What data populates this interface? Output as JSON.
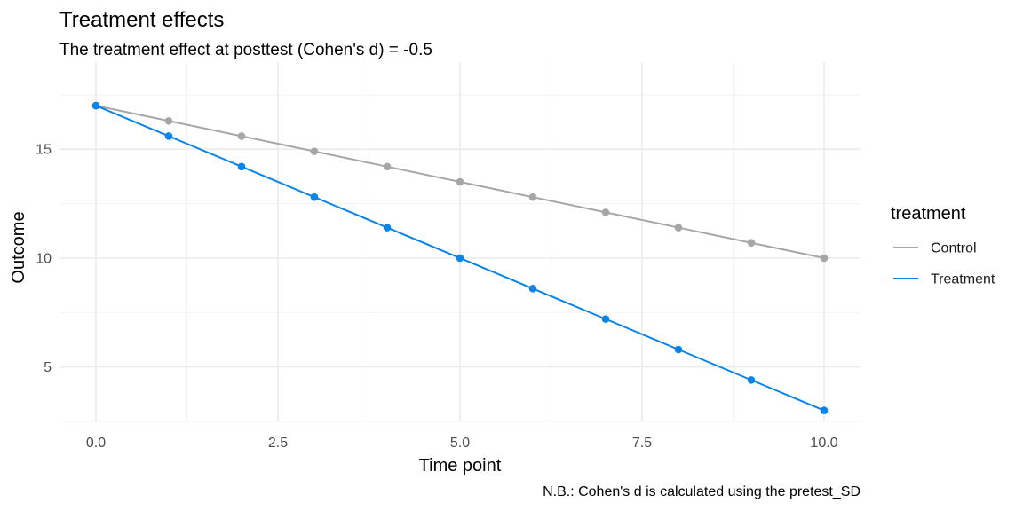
{
  "chart_data": {
    "type": "line",
    "title": "Treatment effects",
    "subtitle": "The treatment effect at posttest (Cohen's d) = -0.5",
    "xlabel": "Time point",
    "ylabel": "Outcome",
    "caption": "N.B.: Cohen's d is calculated using the pretest_SD",
    "x": [
      0,
      1,
      2,
      3,
      4,
      5,
      6,
      7,
      8,
      9,
      10
    ],
    "xlim": [
      -0.5,
      10.5
    ],
    "ylim": [
      2.5,
      19.0
    ],
    "x_ticks": [
      0,
      2.5,
      5,
      7.5,
      10
    ],
    "x_tick_labels": [
      "0.0",
      "2.5",
      "5.0",
      "7.5",
      "10.0"
    ],
    "y_ticks": [
      5,
      10,
      15
    ],
    "y_tick_labels": [
      "5",
      "10",
      "15"
    ],
    "grid": true,
    "legend": {
      "title": "treatment",
      "position": "right"
    },
    "series": [
      {
        "name": "Control",
        "color": "#a6a6a6",
        "values": [
          17.0,
          16.3,
          15.6,
          14.9,
          14.2,
          13.5,
          12.8,
          12.1,
          11.4,
          10.7,
          10.0
        ]
      },
      {
        "name": "Treatment",
        "color": "#0b84e8",
        "values": [
          17.0,
          15.6,
          14.2,
          12.8,
          11.4,
          10.0,
          8.6,
          7.2,
          5.8,
          4.4,
          3.0
        ]
      }
    ]
  }
}
